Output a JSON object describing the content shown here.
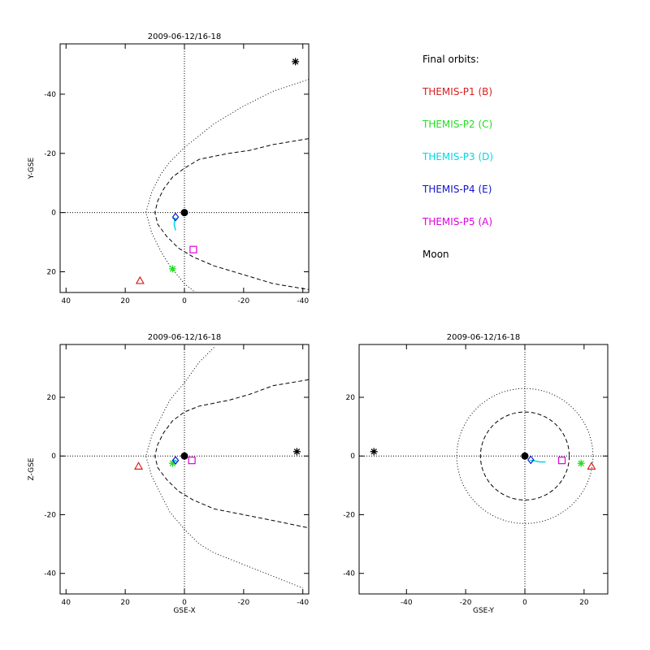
{
  "legend": {
    "heading": "Final orbits:",
    "items": [
      {
        "label": "THEMIS-P1 (B)",
        "color": "#d62020"
      },
      {
        "label": "THEMIS-P2 (C)",
        "color": "#22dd22"
      },
      {
        "label": "THEMIS-P3 (D)",
        "color": "#00d8e8"
      },
      {
        "label": "THEMIS-P4 (E)",
        "color": "#1414c8"
      },
      {
        "label": "THEMIS-P5 (A)",
        "color": "#dc00dc"
      },
      {
        "label": "Moon",
        "color": "#000000"
      }
    ]
  },
  "chart_data": [
    {
      "type": "scatter",
      "title": "2009-06-12/16-18",
      "xlabel": "",
      "ylabel": "Y-GSE",
      "xlim": [
        42,
        -42
      ],
      "ylim": [
        27,
        -57
      ],
      "xticks": [
        40,
        20,
        0,
        -20,
        -40
      ],
      "yticks": [
        -40,
        -20,
        0,
        20
      ],
      "grid": "dotted zero lines",
      "boundaries": [
        {
          "name": "",
          "style": "dotted",
          "x": [
            -42,
            -30,
            -20,
            -10,
            0,
            5,
            8,
            11,
            13,
            11,
            8,
            5,
            0,
            -5
          ],
          "y": [
            -45,
            -41,
            -36,
            -30,
            -22,
            -17,
            -13,
            -7,
            0,
            7,
            13,
            18,
            24,
            28
          ]
        },
        {
          "name": "",
          "style": "dashed",
          "x": [
            -42,
            -30,
            -22,
            -15,
            -10,
            -5,
            0,
            4,
            7,
            9,
            10,
            9,
            6,
            2,
            -3,
            -10,
            -20,
            -30,
            -42
          ],
          "y": [
            -25,
            -23,
            -21,
            -20,
            -19,
            -18,
            -15,
            -12,
            -8,
            -4,
            0,
            4,
            8,
            12,
            15,
            18,
            21,
            24,
            26
          ]
        }
      ],
      "series": [
        {
          "name": "THEMIS-P1 (B)",
          "marker": "triangle",
          "color": "#d62020",
          "points": [
            [
              15,
              23
            ]
          ]
        },
        {
          "name": "THEMIS-P2 (C)",
          "marker": "asterisk",
          "color": "#22dd22",
          "points": [
            [
              4,
              19
            ]
          ]
        },
        {
          "name": "THEMIS-P3 (D)",
          "marker": "line",
          "color": "#00d8e8",
          "points": [
            [
              3.2,
              2
            ],
            [
              3.5,
              4
            ],
            [
              3,
              6
            ]
          ]
        },
        {
          "name": "THEMIS-P4 (E)",
          "marker": "diamond",
          "color": "#1414c8",
          "points": [
            [
              3,
              1.5
            ]
          ]
        },
        {
          "name": "THEMIS-P5 (A)",
          "marker": "square",
          "color": "#dc00dc",
          "points": [
            [
              -3,
              12.5
            ]
          ]
        },
        {
          "name": "Moon",
          "marker": "asterisk",
          "color": "#000000",
          "points": [
            [
              -37.5,
              -51
            ]
          ]
        }
      ],
      "earth": [
        0,
        0
      ]
    },
    {
      "type": "scatter",
      "title": "2009-06-12/16-18",
      "xlabel": "GSE-X",
      "ylabel": "Z-GSE",
      "xlim": [
        42,
        -42
      ],
      "ylim": [
        -47,
        38
      ],
      "xticks": [
        40,
        20,
        0,
        -20,
        -40
      ],
      "yticks": [
        -40,
        -20,
        0,
        20
      ],
      "grid": "dotted zero lines",
      "boundaries": [
        {
          "name": "",
          "style": "dotted",
          "x": [
            -10,
            -5,
            0,
            5,
            8,
            11,
            13,
            11,
            8,
            5,
            0,
            -5,
            -10,
            -20,
            -30,
            -40
          ],
          "y": [
            37,
            32,
            25,
            19,
            13,
            7,
            0,
            -7,
            -13,
            -19,
            -25,
            -30,
            -33,
            -37,
            -41,
            -45
          ]
        },
        {
          "name": "",
          "style": "dashed",
          "x": [
            -42,
            -30,
            -22,
            -15,
            -10,
            -5,
            0,
            4,
            7,
            9,
            10,
            9,
            6,
            2,
            -3,
            -10,
            -20,
            -30,
            -42
          ],
          "y": [
            26,
            24,
            21,
            19,
            18,
            17,
            15,
            12,
            8,
            4,
            0,
            -4,
            -8,
            -12,
            -15,
            -18,
            -20,
            -22,
            -24.5
          ]
        }
      ],
      "series": [
        {
          "name": "THEMIS-P1 (B)",
          "marker": "triangle",
          "color": "#d62020",
          "points": [
            [
              15.5,
              -3.5
            ]
          ]
        },
        {
          "name": "THEMIS-P2 (C)",
          "marker": "asterisk",
          "color": "#22dd22",
          "points": [
            [
              4,
              -2.5
            ]
          ]
        },
        {
          "name": "THEMIS-P3 (D)",
          "marker": "line",
          "color": "#00d8e8",
          "points": [
            [
              3.5,
              -1.5
            ],
            [
              2.5,
              -2
            ]
          ]
        },
        {
          "name": "THEMIS-P4 (E)",
          "marker": "diamond",
          "color": "#1414c8",
          "points": [
            [
              3,
              -1.5
            ]
          ]
        },
        {
          "name": "THEMIS-P5 (A)",
          "marker": "square",
          "color": "#dc00dc",
          "points": [
            [
              -2.5,
              -1.5
            ]
          ]
        },
        {
          "name": "Moon",
          "marker": "asterisk",
          "color": "#000000",
          "points": [
            [
              -38,
              1.5
            ]
          ]
        }
      ],
      "earth": [
        0,
        0
      ]
    },
    {
      "type": "scatter",
      "title": "2009-06-12/16-18",
      "xlabel": "GSE-Y",
      "ylabel": "",
      "xlim": [
        -56,
        28
      ],
      "ylim": [
        -47,
        38
      ],
      "xticks": [
        -40,
        -20,
        0,
        20
      ],
      "yticks": [
        -40,
        -20,
        0,
        20
      ],
      "grid": "dotted zero lines",
      "circles": [
        {
          "name": "",
          "style": "dotted",
          "r": 23
        },
        {
          "name": "",
          "style": "dashed",
          "r": 15
        }
      ],
      "series": [
        {
          "name": "THEMIS-P1 (B)",
          "marker": "triangle",
          "color": "#d62020",
          "points": [
            [
              22.5,
              -3.5
            ]
          ]
        },
        {
          "name": "THEMIS-P2 (C)",
          "marker": "asterisk",
          "color": "#22dd22",
          "points": [
            [
              19,
              -2.5
            ]
          ]
        },
        {
          "name": "THEMIS-P3 (D)",
          "marker": "line",
          "color": "#00d8e8",
          "points": [
            [
              2.5,
              -1.5
            ],
            [
              5,
              -2
            ],
            [
              7,
              -2
            ]
          ]
        },
        {
          "name": "THEMIS-P4 (E)",
          "marker": "diamond",
          "color": "#1414c8",
          "points": [
            [
              2,
              -1.3
            ]
          ]
        },
        {
          "name": "THEMIS-P5 (A)",
          "marker": "square",
          "color": "#dc00dc",
          "points": [
            [
              12.5,
              -1.5
            ]
          ]
        },
        {
          "name": "Moon",
          "marker": "asterisk",
          "color": "#000000",
          "points": [
            [
              -51,
              1.5
            ]
          ]
        }
      ],
      "earth": [
        0,
        0
      ]
    }
  ]
}
